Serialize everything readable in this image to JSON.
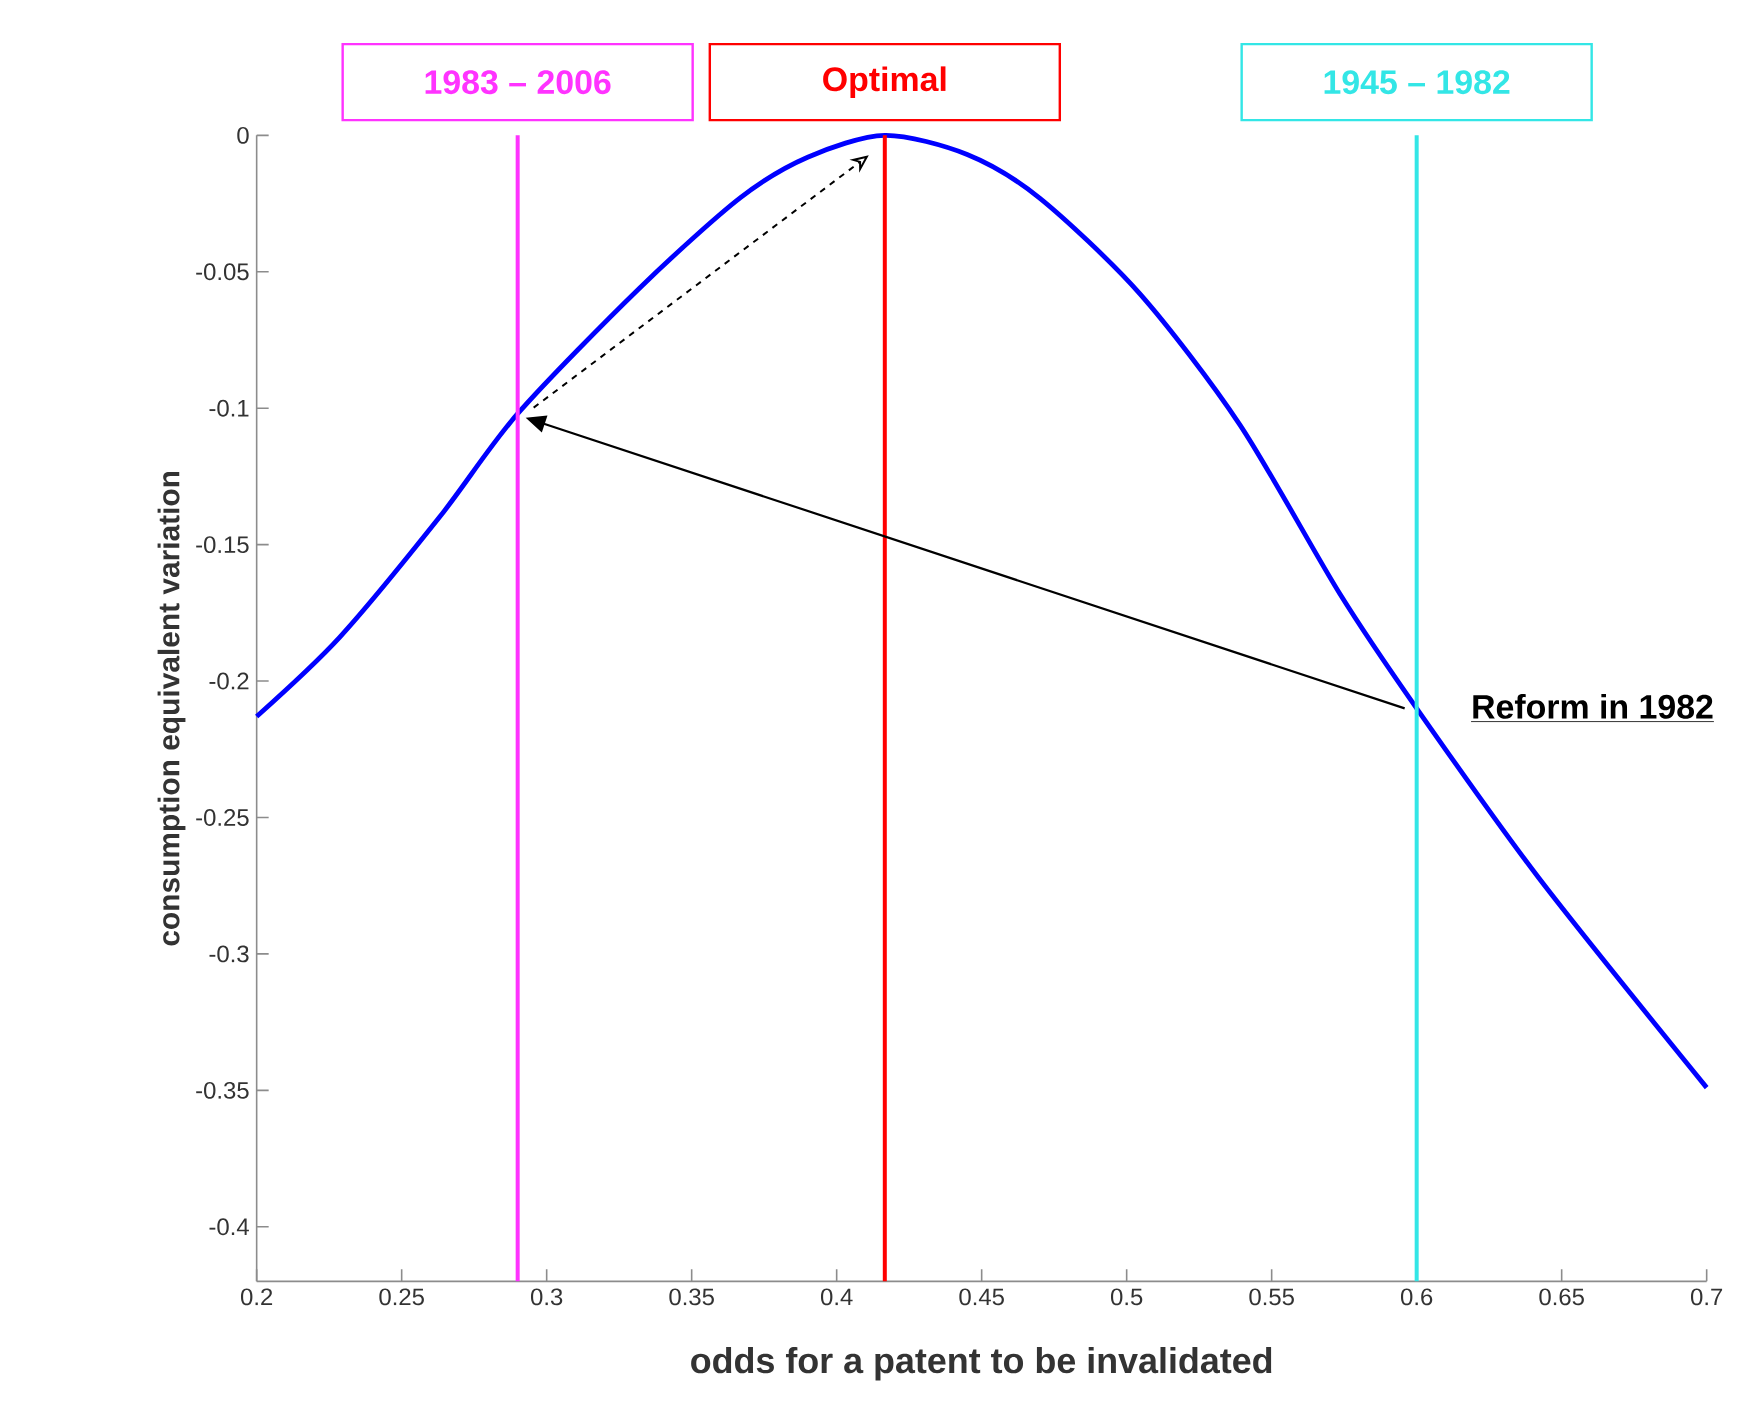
{
  "chart_data": {
    "type": "line",
    "xlabel": "odds for a patent to be invalidated",
    "ylabel": "consumption equivalent variation",
    "xlim": [
      0.2,
      0.7
    ],
    "ylim": [
      -0.42,
      0
    ],
    "xticks": [
      0.2,
      0.25,
      0.3,
      0.35,
      0.4,
      0.45,
      0.5,
      0.55,
      0.6,
      0.65,
      0.7
    ],
    "yticks": [
      0,
      -0.05,
      -0.1,
      -0.15,
      -0.2,
      -0.25,
      -0.3,
      -0.35,
      -0.4
    ],
    "series": [
      {
        "color": "#0000ff",
        "x": [
          0.2,
          0.2286,
          0.263,
          0.29,
          0.332,
          0.3666,
          0.39,
          0.4166,
          0.445,
          0.47,
          0.5045,
          0.539,
          0.5735,
          0.6,
          0.642,
          0.7
        ],
        "values": [
          -0.213,
          -0.184,
          -0.14,
          -0.102,
          -0.056,
          -0.023,
          -0.008,
          0,
          -0.007,
          -0.023,
          -0.058,
          -0.106,
          -0.168,
          -0.21,
          -0.272,
          -0.349
        ]
      }
    ],
    "ref_lines": [
      {
        "axis": "x",
        "value": 0.29,
        "label": "1983 – 2006",
        "color": "#ff33ff"
      },
      {
        "axis": "x",
        "value": 0.4166,
        "label": "Optimal",
        "color": "#ff0000"
      },
      {
        "axis": "x",
        "value": 0.6,
        "label": "1945 – 1982",
        "color": "#33e6e6"
      }
    ],
    "annotations": [
      {
        "text": "Reform in 1982",
        "x": 0.6,
        "y": -0.21
      }
    ]
  }
}
